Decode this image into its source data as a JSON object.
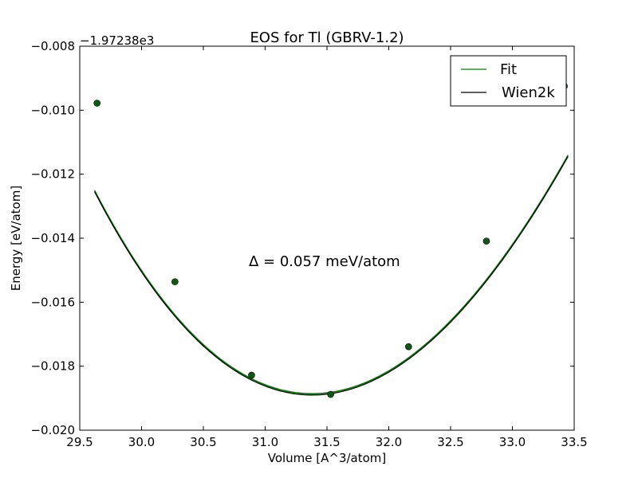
{
  "chart_data": {
    "type": "line",
    "title": "EOS for Tl (GBRV-1.2)",
    "xlabel": "Volume [A^3/atom]",
    "ylabel": "Energy [eV/atom]",
    "offset_label": "−1.97238e3",
    "annotation": "Δ = 0.057 meV/atom",
    "xlim": [
      29.5,
      33.5
    ],
    "ylim": [
      -0.02,
      -0.008
    ],
    "xticks": [
      29.5,
      30.0,
      30.5,
      31.0,
      31.5,
      32.0,
      32.5,
      33.0,
      33.5
    ],
    "xtick_labels": [
      "29.5",
      "30.0",
      "30.5",
      "31.0",
      "31.5",
      "32.0",
      "32.5",
      "33.0",
      "33.5"
    ],
    "yticks": [
      -0.02,
      -0.018,
      -0.016,
      -0.014,
      -0.012,
      -0.01,
      -0.008
    ],
    "ytick_labels": [
      "−0.020",
      "−0.018",
      "−0.016",
      "−0.014",
      "−0.012",
      "−0.010",
      "−0.008"
    ],
    "legend_position": "top-right",
    "grid": false,
    "eos": {
      "v0": 31.38,
      "e_min": -0.0189,
      "curvature": 0.001908,
      "asymmetry": -8.13e-05
    },
    "series": [
      {
        "name": "Fit",
        "color": "#008000",
        "kind": "line"
      },
      {
        "name": "Wien2k",
        "color": "#000000",
        "kind": "line"
      }
    ],
    "points": {
      "color": "#0b5a12",
      "x": [
        29.64,
        30.27,
        30.89,
        31.53,
        32.16,
        32.79,
        33.42
      ],
      "y": [
        -0.00978,
        -0.01536,
        -0.01828,
        -0.01888,
        -0.01739,
        -0.01409,
        -0.00925
      ]
    }
  }
}
